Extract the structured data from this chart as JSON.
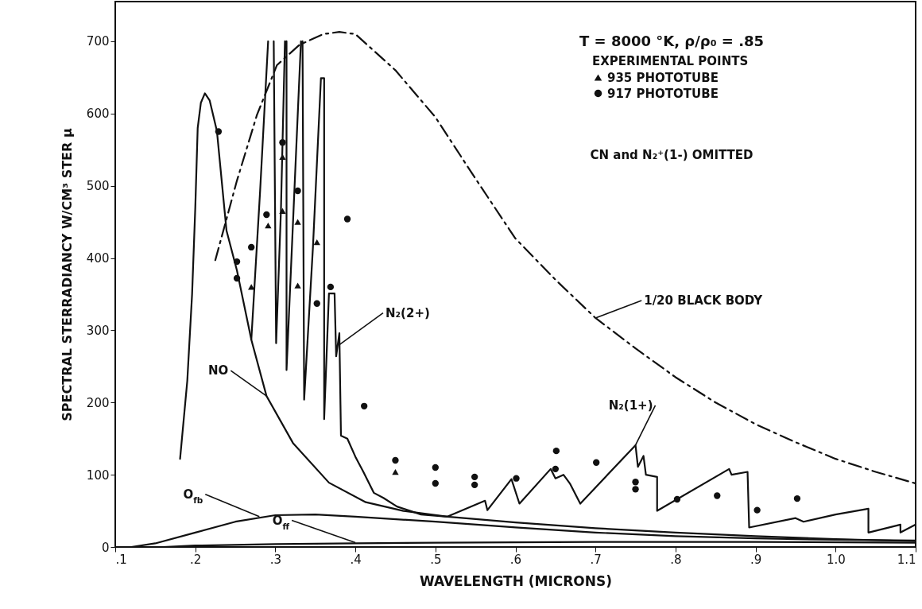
{
  "chart_data": {
    "type": "line",
    "xlabel": "WAVELENGTH  (MICRONS)",
    "ylabel": "SPECTRAL  STERRADIANCY  W/CM³ STER μ",
    "xlim": [
      0.1,
      1.1
    ],
    "ylim": [
      0,
      755
    ],
    "xticks": [
      {
        "value": 0.1,
        "label": ".1"
      },
      {
        "value": 0.2,
        "label": ".2"
      },
      {
        "value": 0.3,
        "label": ".3"
      },
      {
        "value": 0.4,
        "label": ".4"
      },
      {
        "value": 0.5,
        "label": ".5"
      },
      {
        "value": 0.6,
        "label": ".6"
      },
      {
        "value": 0.7,
        "label": ".7"
      },
      {
        "value": 0.8,
        "label": ".8"
      },
      {
        "value": 0.9,
        "label": ".9"
      },
      {
        "value": 1.0,
        "label": "1.0"
      },
      {
        "value": 1.1,
        "label": "1.1"
      }
    ],
    "yticks": [
      0,
      100,
      200,
      300,
      400,
      500,
      600,
      700
    ],
    "legend": "top right",
    "legend_title": "EXPERIMENTAL POINTS",
    "series": [
      {
        "color": "#111111",
        "line_style": "solid",
        "x": [
          0.181,
          0.19,
          0.196,
          0.2,
          0.203,
          0.207,
          0.212,
          0.218,
          0.227,
          0.239,
          0.252,
          0.27,
          0.289,
          0.322,
          0.367,
          0.413,
          0.46,
          0.515,
          0.6,
          0.7,
          0.8,
          0.9,
          1.0,
          1.1
        ],
        "values": [
          122,
          230,
          350,
          470,
          580,
          615,
          628,
          618,
          576,
          438,
          383,
          287,
          209,
          144,
          89,
          62,
          50,
          42,
          34,
          26,
          20,
          15,
          11,
          8
        ]
      },
      {
        "color": "#111111",
        "line_style": "solid",
        "x": [
          0.27,
          0.281,
          0.291,
          0.295,
          0.298,
          0.301,
          0.307,
          0.312,
          0.313,
          0.314,
          0.314,
          0.332,
          0.333,
          0.334,
          0.336,
          0.347,
          0.357,
          0.361,
          0.361,
          0.367,
          0.374,
          0.376,
          0.38,
          0.382,
          0.39,
          0.4,
          0.41,
          0.423,
          0.435,
          0.452,
          0.482,
          0.515
        ],
        "values": [
          287,
          493,
          700,
          null,
          700,
          282,
          466,
          700,
          null,
          700,
          245,
          700,
          null,
          700,
          204,
          415,
          649,
          649,
          177,
          351,
          351,
          264,
          296,
          154,
          150,
          125,
          104,
          75,
          68,
          56,
          45,
          42
        ]
      },
      {
        "color": "#111111",
        "line_style": "solid",
        "x": [
          0.515,
          0.562,
          0.565,
          0.595,
          0.605,
          0.644,
          0.65,
          0.66,
          0.668,
          0.681,
          0.75,
          0.753,
          0.76,
          0.763,
          0.777,
          0.777,
          0.867,
          0.87,
          0.89,
          0.892,
          0.95,
          0.96,
          1.0,
          1.041,
          1.041,
          1.081,
          1.081,
          1.1
        ],
        "values": [
          42,
          64,
          51,
          94,
          60,
          108,
          95,
          100,
          88,
          60,
          141,
          111,
          126,
          100,
          97,
          50,
          108,
          100,
          104,
          27,
          40,
          35,
          45,
          53,
          20,
          31,
          20,
          31
        ]
      },
      {
        "color": "#111111",
        "line_style": "solid",
        "x": [
          0.12,
          0.15,
          0.2,
          0.25,
          0.3,
          0.35,
          0.4,
          0.5,
          0.6,
          0.7,
          0.8,
          0.9,
          1.0,
          1.1
        ],
        "values": [
          0,
          5,
          20,
          35,
          44,
          45,
          42,
          35,
          27,
          20,
          15,
          12,
          10,
          9
        ]
      },
      {
        "color": "#111111",
        "line_style": "solid",
        "x": [
          0.16,
          0.2,
          0.3,
          0.4,
          0.5,
          0.7,
          0.9,
          1.1
        ],
        "values": [
          0,
          2,
          4,
          5,
          6,
          7,
          7,
          6
        ]
      },
      {
        "color": "#111111",
        "line_style": "dashed",
        "x": [
          0.225,
          0.252,
          0.277,
          0.302,
          0.33,
          0.36,
          0.38,
          0.4,
          0.45,
          0.5,
          0.55,
          0.6,
          0.65,
          0.7,
          0.75,
          0.8,
          0.85,
          0.9,
          0.95,
          1.0,
          1.05,
          1.1
        ],
        "values": [
          397,
          507,
          598,
          667,
          695,
          710,
          713,
          710,
          660,
          595,
          510,
          427,
          370,
          317,
          275,
          235,
          200,
          170,
          145,
          122,
          104,
          88
        ]
      },
      {
        "type": "scatter",
        "name": "935 PHOTOTUBE",
        "marker": "triangle",
        "color": "#111111",
        "x": [
          0.27,
          0.291,
          0.309,
          0.309,
          0.328,
          0.328,
          0.352,
          0.45
        ],
        "values": [
          360,
          445,
          540,
          465,
          450,
          362,
          422,
          104
        ]
      },
      {
        "type": "scatter",
        "name": "917 PHOTOTUBE",
        "marker": "circle",
        "color": "#111111",
        "x": [
          0.229,
          0.252,
          0.252,
          0.27,
          0.289,
          0.309,
          0.328,
          0.352,
          0.369,
          0.39,
          0.411,
          0.45,
          0.5,
          0.5,
          0.549,
          0.549,
          0.601,
          0.651,
          0.65,
          0.701,
          0.75,
          0.75,
          0.802,
          0.852,
          0.902,
          0.952
        ],
        "values": [
          575,
          395,
          372,
          415,
          460,
          560,
          493,
          337,
          360,
          454,
          195,
          120,
          110,
          88,
          97,
          86,
          95,
          133,
          108,
          117,
          90,
          80,
          66,
          71,
          51,
          67
        ]
      }
    ],
    "annotations": [
      "T = 8000 °K, ρ/ρ₀ = .85",
      {
        "text": "NO",
        "x": 0.289,
        "y": 209
      },
      {
        "text": "N₂(2+)",
        "x": 0.38,
        "y": 280
      },
      {
        "text": "1/20  BLACK BODY",
        "x": 0.7,
        "y": 317
      },
      {
        "text": "N₂(1+)",
        "x": 0.75,
        "y": 141
      },
      {
        "text": "O$_{fb}$",
        "x": 0.28,
        "y": 42
      },
      {
        "text": "O$_{ff}$",
        "x": 0.4,
        "y": 6
      },
      "CN and N₂⁺(1-) OMITTED"
    ]
  }
}
